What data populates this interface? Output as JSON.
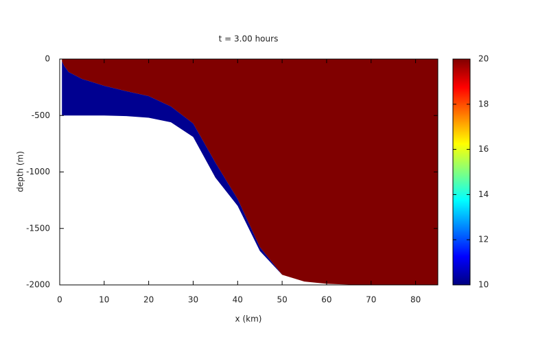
{
  "chart_data": {
    "type": "field",
    "title": "t = 3.00 hours",
    "x_label": "x (km)",
    "y_label": "depth (m)",
    "x": [
      0.5,
      1,
      2,
      5,
      10,
      15,
      20,
      25,
      30,
      35,
      40,
      45,
      50,
      55,
      60,
      65,
      70,
      75,
      80,
      85
    ],
    "layers": [
      {
        "value": 20,
        "color": "#800000",
        "depth": [
          -20,
          -60,
          -115,
          -176,
          -237,
          -285,
          -328,
          -420,
          -571,
          -918,
          -1240,
          -1666,
          -1910,
          -1970,
          -1990,
          -1997,
          -2000,
          -2000,
          -2000,
          -2000
        ]
      },
      {
        "value": 10,
        "color": "#000090",
        "depth": [
          -500,
          -500,
          -500,
          -500,
          -500,
          -505,
          -520,
          -560,
          -690,
          -1050,
          -1300,
          -1700,
          -1910,
          -1970,
          -1990,
          -1997,
          -2000,
          -2000,
          -2000,
          -2000
        ]
      }
    ],
    "xlim": [
      0,
      85
    ],
    "xticks": [
      0,
      10,
      20,
      30,
      40,
      50,
      60,
      70,
      80
    ],
    "ylim": [
      -2000,
      0
    ],
    "yticks": [
      0,
      -500,
      -1000,
      -1500,
      -2000
    ],
    "clim": [
      10,
      20
    ],
    "cticks": [
      10,
      12,
      14,
      16,
      18,
      20
    ],
    "colormap": [
      "#000080",
      "#0000ff",
      "#0080ff",
      "#00ffff",
      "#80ff80",
      "#ffff00",
      "#ff8000",
      "#ff0000",
      "#800000"
    ]
  }
}
